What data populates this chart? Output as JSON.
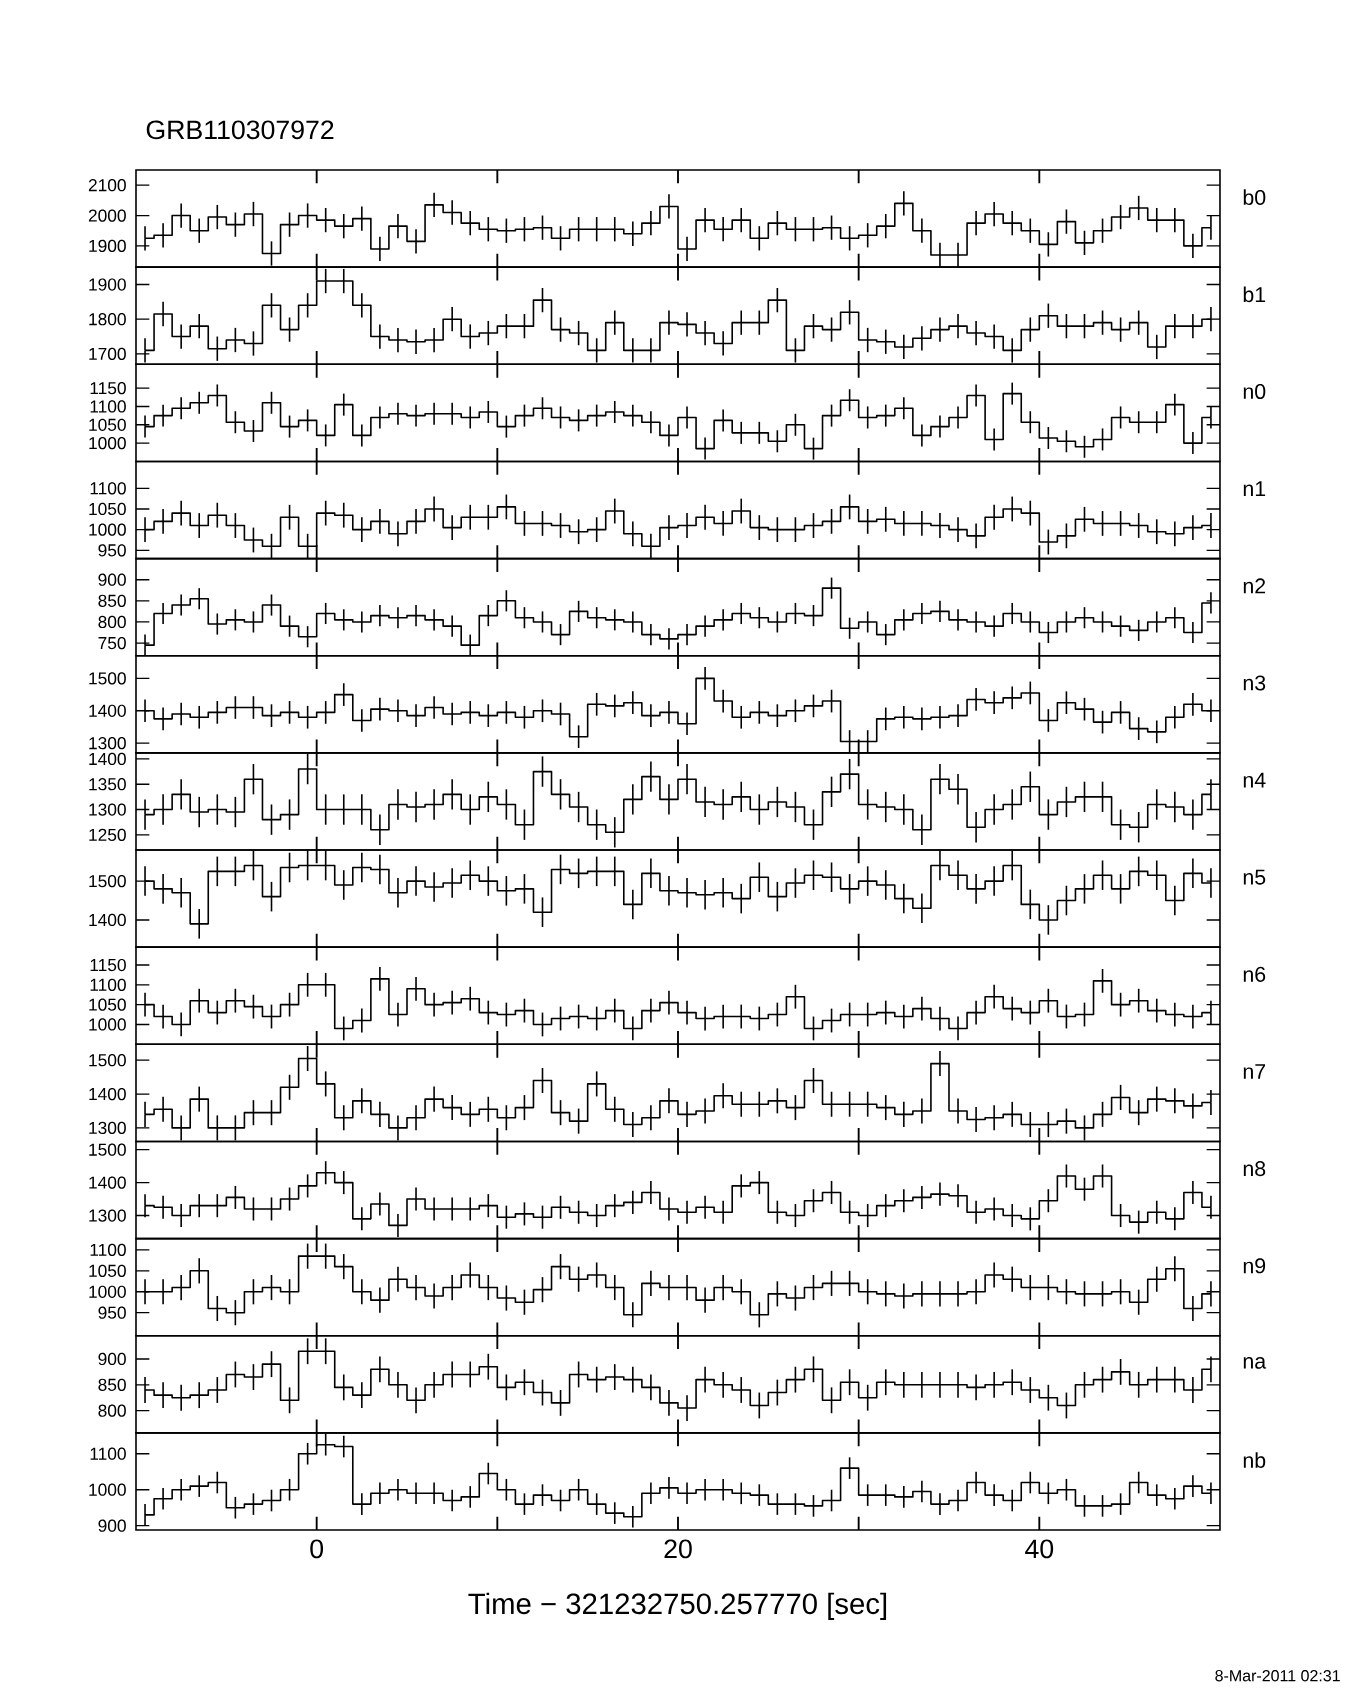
{
  "chart_data": [
    {
      "type": "step",
      "title": "GRB110307972",
      "annotations": [
        "b0"
      ],
      "color": "#000000",
      "tick_labels": "y",
      "xlim": [
        -10,
        50
      ],
      "xticks": [
        0,
        20,
        40
      ],
      "ylim": [
        1830,
        2150
      ],
      "yticks": [
        1900,
        2000,
        2100
      ],
      "x": [
        -9.5,
        -8.5,
        -7.5,
        -6.5,
        -5.5,
        -4.5,
        -3.5,
        -2.5,
        -1.5,
        -0.5,
        0.5,
        1.5,
        2.5,
        3.5,
        4.5,
        5.5,
        6.5,
        7.5,
        8.5,
        9.5,
        10.5,
        11.5,
        12.5,
        13.5,
        14.5,
        15.5,
        16.5,
        17.5,
        18.5,
        19.5,
        20.5,
        21.5,
        22.5,
        23.5,
        24.5,
        25.5,
        26.5,
        27.5,
        28.5,
        29.5,
        30.5,
        31.5,
        32.5,
        33.5,
        34.5,
        35.5,
        36.5,
        37.5,
        38.5,
        39.5,
        40.5,
        41.5,
        42.5,
        43.5,
        44.5,
        45.5,
        46.5,
        47.5,
        48.5,
        49.5
      ],
      "values": [
        1925,
        1935,
        2000,
        1950,
        1995,
        1970,
        2005,
        1875,
        1970,
        2000,
        1985,
        1965,
        1990,
        1890,
        1965,
        1915,
        2035,
        2010,
        1975,
        1955,
        1950,
        1955,
        1960,
        1925,
        1955,
        1955,
        1955,
        1940,
        1975,
        2030,
        1890,
        1985,
        1955,
        1985,
        1925,
        1975,
        1955,
        1955,
        1960,
        1925,
        1935,
        1965,
        2040,
        1950,
        1870,
        1870,
        1975,
        2005,
        1975,
        1950,
        1905,
        1980,
        1910,
        1950,
        1995,
        2025,
        1985,
        1985,
        1900,
        1960
      ],
      "errors": [
        40,
        40,
        40,
        40,
        40,
        40,
        40,
        40,
        40,
        40,
        40,
        40,
        40,
        40,
        40,
        40,
        40,
        40,
        40,
        40,
        40,
        40,
        40,
        40,
        40,
        40,
        40,
        40,
        40,
        40,
        40,
        40,
        40,
        40,
        40,
        40,
        40,
        40,
        40,
        40,
        40,
        40,
        40,
        40,
        40,
        40,
        40,
        40,
        40,
        40,
        40,
        40,
        40,
        40,
        40,
        40,
        40,
        40,
        40,
        40
      ]
    },
    {
      "type": "step",
      "annotations": [
        "b1"
      ],
      "color": "#000000",
      "tick_labels": "y",
      "xlim": [
        -10,
        50
      ],
      "xticks": [
        0,
        20,
        40
      ],
      "ylim": [
        1670,
        1950
      ],
      "yticks": [
        1700,
        1800,
        1900
      ],
      "x": [
        -9.5,
        -8.5,
        -7.5,
        -6.5,
        -5.5,
        -4.5,
        -3.5,
        -2.5,
        -1.5,
        -0.5,
        0.5,
        1.5,
        2.5,
        3.5,
        4.5,
        5.5,
        6.5,
        7.5,
        8.5,
        9.5,
        10.5,
        11.5,
        12.5,
        13.5,
        14.5,
        15.5,
        16.5,
        17.5,
        18.5,
        19.5,
        20.5,
        21.5,
        22.5,
        23.5,
        24.5,
        25.5,
        26.5,
        27.5,
        28.5,
        29.5,
        30.5,
        31.5,
        32.5,
        33.5,
        34.5,
        35.5,
        36.5,
        37.5,
        38.5,
        39.5,
        40.5,
        41.5,
        42.5,
        43.5,
        44.5,
        45.5,
        46.5,
        47.5,
        48.5,
        49.5
      ],
      "values": [
        1710,
        1815,
        1750,
        1780,
        1715,
        1740,
        1730,
        1840,
        1770,
        1840,
        1910,
        1910,
        1840,
        1750,
        1740,
        1735,
        1740,
        1800,
        1750,
        1760,
        1780,
        1780,
        1855,
        1770,
        1760,
        1710,
        1790,
        1710,
        1710,
        1790,
        1785,
        1760,
        1730,
        1790,
        1790,
        1855,
        1710,
        1780,
        1770,
        1820,
        1740,
        1735,
        1720,
        1745,
        1770,
        1780,
        1760,
        1750,
        1710,
        1770,
        1810,
        1780,
        1780,
        1790,
        1770,
        1790,
        1720,
        1780,
        1780,
        1800
      ],
      "errors": [
        35,
        35,
        35,
        35,
        35,
        35,
        35,
        35,
        35,
        35,
        35,
        35,
        35,
        35,
        35,
        35,
        35,
        35,
        35,
        35,
        35,
        35,
        35,
        35,
        35,
        35,
        35,
        35,
        35,
        35,
        35,
        35,
        35,
        35,
        35,
        35,
        35,
        35,
        35,
        35,
        35,
        35,
        35,
        35,
        35,
        35,
        35,
        35,
        35,
        35,
        35,
        35,
        35,
        35,
        35,
        35,
        35,
        35,
        35,
        35
      ]
    },
    {
      "type": "step",
      "annotations": [
        "n0"
      ],
      "color": "#000000",
      "tick_labels": "y",
      "xlim": [
        -10,
        50
      ],
      "xticks": [
        0,
        20,
        40
      ],
      "ylim": [
        950,
        1215
      ],
      "yticks": [
        1000,
        1050,
        1100,
        1150
      ],
      "x": [
        -9.5,
        -8.5,
        -7.5,
        -6.5,
        -5.5,
        -4.5,
        -3.5,
        -2.5,
        -1.5,
        -0.5,
        0.5,
        1.5,
        2.5,
        3.5,
        4.5,
        5.5,
        6.5,
        7.5,
        8.5,
        9.5,
        10.5,
        11.5,
        12.5,
        13.5,
        14.5,
        15.5,
        16.5,
        17.5,
        18.5,
        19.5,
        20.5,
        21.5,
        22.5,
        23.5,
        24.5,
        25.5,
        26.5,
        27.5,
        28.5,
        29.5,
        30.5,
        31.5,
        32.5,
        33.5,
        34.5,
        35.5,
        36.5,
        37.5,
        38.5,
        39.5,
        40.5,
        41.5,
        42.5,
        43.5,
        44.5,
        45.5,
        46.5,
        47.5,
        48.5,
        49.5
      ],
      "values": [
        1045,
        1075,
        1095,
        1110,
        1130,
        1057,
        1033,
        1110,
        1045,
        1062,
        1021,
        1105,
        1021,
        1070,
        1080,
        1075,
        1080,
        1080,
        1070,
        1085,
        1045,
        1075,
        1095,
        1070,
        1062,
        1075,
        1085,
        1075,
        1057,
        1021,
        1070,
        985,
        1062,
        1028,
        1028,
        1005,
        1050,
        985,
        1075,
        1117,
        1070,
        1075,
        1095,
        1021,
        1045,
        1070,
        1130,
        1010,
        1135,
        1057,
        1014,
        1005,
        990,
        1010,
        1070,
        1057,
        1057,
        1105,
        1000,
        1070
      ],
      "errors": [
        30,
        30,
        30,
        30,
        30,
        30,
        30,
        30,
        30,
        30,
        30,
        30,
        30,
        30,
        30,
        30,
        30,
        30,
        30,
        30,
        30,
        30,
        30,
        30,
        30,
        30,
        30,
        30,
        30,
        30,
        30,
        30,
        30,
        30,
        30,
        30,
        30,
        30,
        30,
        30,
        30,
        30,
        30,
        30,
        30,
        30,
        30,
        30,
        30,
        30,
        30,
        30,
        30,
        30,
        30,
        30,
        30,
        30,
        30,
        30
      ]
    },
    {
      "type": "step",
      "annotations": [
        "n1"
      ],
      "color": "#000000",
      "tick_labels": "y",
      "xlim": [
        -10,
        50
      ],
      "xticks": [
        0,
        20,
        40
      ],
      "ylim": [
        930,
        1165
      ],
      "yticks": [
        950,
        1000,
        1050,
        1100
      ],
      "x": [
        -9.5,
        -8.5,
        -7.5,
        -6.5,
        -5.5,
        -4.5,
        -3.5,
        -2.5,
        -1.5,
        -0.5,
        0.5,
        1.5,
        2.5,
        3.5,
        4.5,
        5.5,
        6.5,
        7.5,
        8.5,
        9.5,
        10.5,
        11.5,
        12.5,
        13.5,
        14.5,
        15.5,
        16.5,
        17.5,
        18.5,
        19.5,
        20.5,
        21.5,
        22.5,
        23.5,
        24.5,
        25.5,
        26.5,
        27.5,
        28.5,
        29.5,
        30.5,
        31.5,
        32.5,
        33.5,
        34.5,
        35.5,
        36.5,
        37.5,
        38.5,
        39.5,
        40.5,
        41.5,
        42.5,
        43.5,
        44.5,
        45.5,
        46.5,
        47.5,
        48.5,
        49.5
      ],
      "values": [
        1000,
        1020,
        1040,
        1010,
        1035,
        1010,
        975,
        960,
        1030,
        960,
        1040,
        1035,
        1000,
        1020,
        990,
        1020,
        1050,
        1005,
        1030,
        1030,
        1055,
        1015,
        1015,
        1010,
        995,
        1000,
        1045,
        990,
        960,
        1005,
        1010,
        1030,
        1015,
        1045,
        1005,
        1000,
        1000,
        1010,
        1020,
        1055,
        1020,
        1025,
        1015,
        1015,
        1010,
        1000,
        985,
        1030,
        1050,
        1040,
        970,
        985,
        1025,
        1015,
        1015,
        1010,
        995,
        990,
        1005,
        1010
      ],
      "errors": [
        30,
        30,
        30,
        30,
        30,
        30,
        30,
        30,
        30,
        30,
        30,
        30,
        30,
        30,
        30,
        30,
        30,
        30,
        30,
        30,
        30,
        30,
        30,
        30,
        30,
        30,
        30,
        30,
        30,
        30,
        30,
        30,
        30,
        30,
        30,
        30,
        30,
        30,
        30,
        30,
        30,
        30,
        30,
        30,
        30,
        30,
        30,
        30,
        30,
        30,
        30,
        30,
        30,
        30,
        30,
        30,
        30,
        30,
        30,
        30
      ]
    },
    {
      "type": "step",
      "annotations": [
        "n2"
      ],
      "color": "#000000",
      "tick_labels": "y",
      "xlim": [
        -10,
        50
      ],
      "xticks": [
        0,
        20,
        40
      ],
      "ylim": [
        720,
        950
      ],
      "yticks": [
        750,
        800,
        850,
        900
      ],
      "x": [
        -9.5,
        -8.5,
        -7.5,
        -6.5,
        -5.5,
        -4.5,
        -3.5,
        -2.5,
        -1.5,
        -0.5,
        0.5,
        1.5,
        2.5,
        3.5,
        4.5,
        5.5,
        6.5,
        7.5,
        8.5,
        9.5,
        10.5,
        11.5,
        12.5,
        13.5,
        14.5,
        15.5,
        16.5,
        17.5,
        18.5,
        19.5,
        20.5,
        21.5,
        22.5,
        23.5,
        24.5,
        25.5,
        26.5,
        27.5,
        28.5,
        29.5,
        30.5,
        31.5,
        32.5,
        33.5,
        34.5,
        35.5,
        36.5,
        37.5,
        38.5,
        39.5,
        40.5,
        41.5,
        42.5,
        43.5,
        44.5,
        45.5,
        46.5,
        47.5,
        48.5,
        49.5
      ],
      "values": [
        745,
        820,
        840,
        855,
        795,
        805,
        800,
        840,
        790,
        765,
        820,
        805,
        800,
        815,
        810,
        815,
        805,
        790,
        745,
        815,
        850,
        810,
        800,
        770,
        825,
        810,
        805,
        800,
        770,
        760,
        770,
        790,
        805,
        820,
        810,
        800,
        820,
        815,
        880,
        785,
        800,
        770,
        805,
        820,
        825,
        805,
        800,
        790,
        820,
        800,
        775,
        800,
        810,
        800,
        790,
        780,
        800,
        810,
        775,
        845
      ],
      "errors": [
        25,
        25,
        25,
        25,
        25,
        25,
        25,
        25,
        25,
        25,
        25,
        25,
        25,
        25,
        25,
        25,
        25,
        25,
        25,
        25,
        25,
        25,
        25,
        25,
        25,
        25,
        25,
        25,
        25,
        25,
        25,
        25,
        25,
        25,
        25,
        25,
        25,
        25,
        25,
        25,
        25,
        25,
        25,
        25,
        25,
        25,
        25,
        25,
        25,
        25,
        25,
        25,
        25,
        25,
        25,
        25,
        25,
        25,
        25,
        25
      ]
    },
    {
      "type": "step",
      "annotations": [
        "n3"
      ],
      "color": "#000000",
      "tick_labels": "y",
      "xlim": [
        -10,
        50
      ],
      "xticks": [
        0,
        20,
        40
      ],
      "ylim": [
        1270,
        1570
      ],
      "yticks": [
        1300,
        1400,
        1500
      ],
      "x": [
        -9.5,
        -8.5,
        -7.5,
        -6.5,
        -5.5,
        -4.5,
        -3.5,
        -2.5,
        -1.5,
        -0.5,
        0.5,
        1.5,
        2.5,
        3.5,
        4.5,
        5.5,
        6.5,
        7.5,
        8.5,
        9.5,
        10.5,
        11.5,
        12.5,
        13.5,
        14.5,
        15.5,
        16.5,
        17.5,
        18.5,
        19.5,
        20.5,
        21.5,
        22.5,
        23.5,
        24.5,
        25.5,
        26.5,
        27.5,
        28.5,
        29.5,
        30.5,
        31.5,
        32.5,
        33.5,
        34.5,
        35.5,
        36.5,
        37.5,
        38.5,
        39.5,
        40.5,
        41.5,
        42.5,
        43.5,
        44.5,
        45.5,
        46.5,
        47.5,
        48.5,
        49.5
      ],
      "values": [
        1400,
        1375,
        1390,
        1380,
        1395,
        1410,
        1410,
        1385,
        1395,
        1380,
        1395,
        1450,
        1370,
        1405,
        1400,
        1385,
        1410,
        1390,
        1395,
        1385,
        1395,
        1380,
        1400,
        1390,
        1320,
        1420,
        1415,
        1425,
        1385,
        1395,
        1360,
        1500,
        1430,
        1380,
        1395,
        1385,
        1400,
        1415,
        1430,
        1305,
        1305,
        1375,
        1380,
        1375,
        1380,
        1385,
        1435,
        1425,
        1440,
        1455,
        1370,
        1425,
        1405,
        1365,
        1395,
        1345,
        1335,
        1380,
        1420,
        1400
      ],
      "errors": [
        35,
        35,
        35,
        35,
        35,
        35,
        35,
        35,
        35,
        35,
        35,
        35,
        35,
        35,
        35,
        35,
        35,
        35,
        35,
        35,
        35,
        35,
        35,
        35,
        35,
        35,
        35,
        35,
        35,
        35,
        35,
        35,
        35,
        35,
        35,
        35,
        35,
        35,
        35,
        35,
        35,
        35,
        35,
        35,
        35,
        35,
        35,
        35,
        35,
        35,
        35,
        35,
        35,
        35,
        35,
        35,
        35,
        35,
        35,
        35
      ]
    },
    {
      "type": "step",
      "annotations": [
        "n4"
      ],
      "color": "#000000",
      "tick_labels": "y",
      "xlim": [
        -10,
        50
      ],
      "xticks": [
        0,
        20,
        40
      ],
      "ylim": [
        1220,
        1412
      ],
      "yticks": [
        1250,
        1300,
        1350,
        1400
      ],
      "x": [
        -9.5,
        -8.5,
        -7.5,
        -6.5,
        -5.5,
        -4.5,
        -3.5,
        -2.5,
        -1.5,
        -0.5,
        0.5,
        1.5,
        2.5,
        3.5,
        4.5,
        5.5,
        6.5,
        7.5,
        8.5,
        9.5,
        10.5,
        11.5,
        12.5,
        13.5,
        14.5,
        15.5,
        16.5,
        17.5,
        18.5,
        19.5,
        20.5,
        21.5,
        22.5,
        23.5,
        24.5,
        25.5,
        26.5,
        27.5,
        28.5,
        29.5,
        30.5,
        31.5,
        32.5,
        33.5,
        34.5,
        35.5,
        36.5,
        37.5,
        38.5,
        39.5,
        40.5,
        41.5,
        42.5,
        43.5,
        44.5,
        45.5,
        46.5,
        47.5,
        48.5,
        49.5
      ],
      "values": [
        1290,
        1300,
        1330,
        1295,
        1300,
        1295,
        1360,
        1280,
        1290,
        1380,
        1300,
        1300,
        1300,
        1260,
        1310,
        1305,
        1310,
        1330,
        1300,
        1325,
        1310,
        1270,
        1375,
        1330,
        1305,
        1270,
        1255,
        1320,
        1365,
        1320,
        1360,
        1315,
        1310,
        1325,
        1300,
        1315,
        1305,
        1270,
        1335,
        1370,
        1310,
        1305,
        1300,
        1260,
        1360,
        1340,
        1265,
        1300,
        1310,
        1345,
        1290,
        1315,
        1325,
        1325,
        1270,
        1265,
        1310,
        1305,
        1290,
        1330
      ],
      "errors": [
        30,
        30,
        30,
        30,
        30,
        30,
        30,
        30,
        30,
        30,
        30,
        30,
        30,
        30,
        30,
        30,
        30,
        30,
        30,
        30,
        30,
        30,
        30,
        30,
        30,
        30,
        30,
        30,
        30,
        30,
        30,
        30,
        30,
        30,
        30,
        30,
        30,
        30,
        30,
        30,
        30,
        30,
        30,
        30,
        30,
        30,
        30,
        30,
        30,
        30,
        30,
        30,
        30,
        30,
        30,
        30,
        30,
        30,
        30,
        30
      ]
    },
    {
      "type": "step",
      "annotations": [
        "n5"
      ],
      "color": "#000000",
      "tick_labels": "y",
      "xlim": [
        -10,
        50
      ],
      "xticks": [
        0,
        20,
        40
      ],
      "ylim": [
        1330,
        1580
      ],
      "yticks": [
        1400,
        1500
      ],
      "x": [
        -9.5,
        -8.5,
        -7.5,
        -6.5,
        -5.5,
        -4.5,
        -3.5,
        -2.5,
        -1.5,
        -0.5,
        0.5,
        1.5,
        2.5,
        3.5,
        4.5,
        5.5,
        6.5,
        7.5,
        8.5,
        9.5,
        10.5,
        11.5,
        12.5,
        13.5,
        14.5,
        15.5,
        16.5,
        17.5,
        18.5,
        19.5,
        20.5,
        21.5,
        22.5,
        23.5,
        24.5,
        25.5,
        26.5,
        27.5,
        28.5,
        29.5,
        30.5,
        31.5,
        32.5,
        33.5,
        34.5,
        35.5,
        36.5,
        37.5,
        38.5,
        39.5,
        40.5,
        41.5,
        42.5,
        43.5,
        44.5,
        45.5,
        46.5,
        47.5,
        48.5,
        49.5
      ],
      "values": [
        1500,
        1480,
        1470,
        1390,
        1525,
        1525,
        1540,
        1460,
        1535,
        1540,
        1540,
        1490,
        1535,
        1530,
        1470,
        1500,
        1485,
        1495,
        1515,
        1500,
        1475,
        1480,
        1420,
        1530,
        1520,
        1525,
        1525,
        1440,
        1520,
        1475,
        1470,
        1465,
        1470,
        1455,
        1510,
        1460,
        1495,
        1515,
        1510,
        1480,
        1500,
        1490,
        1455,
        1430,
        1540,
        1515,
        1480,
        1500,
        1540,
        1440,
        1400,
        1450,
        1480,
        1515,
        1480,
        1525,
        1515,
        1450,
        1520,
        1495
      ],
      "errors": [
        38,
        38,
        38,
        38,
        38,
        38,
        38,
        38,
        38,
        38,
        38,
        38,
        38,
        38,
        38,
        38,
        38,
        38,
        38,
        38,
        38,
        38,
        38,
        38,
        38,
        38,
        38,
        38,
        38,
        38,
        38,
        38,
        38,
        38,
        38,
        38,
        38,
        38,
        38,
        38,
        38,
        38,
        38,
        38,
        38,
        38,
        38,
        38,
        38,
        38,
        38,
        38,
        38,
        38,
        38,
        38,
        38,
        38,
        38,
        38
      ]
    },
    {
      "type": "step",
      "annotations": [
        "n6"
      ],
      "color": "#000000",
      "tick_labels": "y",
      "xlim": [
        -10,
        50
      ],
      "xticks": [
        0,
        20,
        40
      ],
      "ylim": [
        950,
        1195
      ],
      "yticks": [
        1000,
        1050,
        1100,
        1150
      ],
      "x": [
        -9.5,
        -8.5,
        -7.5,
        -6.5,
        -5.5,
        -4.5,
        -3.5,
        -2.5,
        -1.5,
        -0.5,
        0.5,
        1.5,
        2.5,
        3.5,
        4.5,
        5.5,
        6.5,
        7.5,
        8.5,
        9.5,
        10.5,
        11.5,
        12.5,
        13.5,
        14.5,
        15.5,
        16.5,
        17.5,
        18.5,
        19.5,
        20.5,
        21.5,
        22.5,
        23.5,
        24.5,
        25.5,
        26.5,
        27.5,
        28.5,
        29.5,
        30.5,
        31.5,
        32.5,
        33.5,
        34.5,
        35.5,
        36.5,
        37.5,
        38.5,
        39.5,
        40.5,
        41.5,
        42.5,
        43.5,
        44.5,
        45.5,
        46.5,
        47.5,
        48.5,
        49.5
      ],
      "values": [
        1050,
        1020,
        1000,
        1060,
        1030,
        1060,
        1045,
        1020,
        1050,
        1100,
        1100,
        990,
        1010,
        1115,
        1025,
        1090,
        1050,
        1055,
        1065,
        1030,
        1025,
        1035,
        1000,
        1015,
        1020,
        1015,
        1035,
        990,
        1035,
        1055,
        1030,
        1015,
        1020,
        1020,
        1015,
        1025,
        1070,
        990,
        1010,
        1025,
        1025,
        1030,
        1020,
        1040,
        1015,
        990,
        1030,
        1070,
        1040,
        1030,
        1060,
        1020,
        1025,
        1110,
        1050,
        1060,
        1035,
        1025,
        1020,
        1030
      ],
      "errors": [
        30,
        30,
        30,
        30,
        30,
        30,
        30,
        30,
        30,
        30,
        30,
        30,
        30,
        30,
        30,
        30,
        30,
        30,
        30,
        30,
        30,
        30,
        30,
        30,
        30,
        30,
        30,
        30,
        30,
        30,
        30,
        30,
        30,
        30,
        30,
        30,
        30,
        30,
        30,
        30,
        30,
        30,
        30,
        30,
        30,
        30,
        30,
        30,
        30,
        30,
        30,
        30,
        30,
        30,
        30,
        30,
        30,
        30,
        30,
        30
      ]
    },
    {
      "type": "step",
      "annotations": [
        "n7"
      ],
      "color": "#000000",
      "tick_labels": "y",
      "xlim": [
        -10,
        50
      ],
      "xticks": [
        0,
        20,
        40
      ],
      "ylim": [
        1260,
        1547
      ],
      "yticks": [
        1300,
        1400,
        1500
      ],
      "x": [
        -9.5,
        -8.5,
        -7.5,
        -6.5,
        -5.5,
        -4.5,
        -3.5,
        -2.5,
        -1.5,
        -0.5,
        0.5,
        1.5,
        2.5,
        3.5,
        4.5,
        5.5,
        6.5,
        7.5,
        8.5,
        9.5,
        10.5,
        11.5,
        12.5,
        13.5,
        14.5,
        15.5,
        16.5,
        17.5,
        18.5,
        19.5,
        20.5,
        21.5,
        22.5,
        23.5,
        24.5,
        25.5,
        26.5,
        27.5,
        28.5,
        29.5,
        30.5,
        31.5,
        32.5,
        33.5,
        34.5,
        35.5,
        36.5,
        37.5,
        38.5,
        39.5,
        40.5,
        41.5,
        42.5,
        43.5,
        44.5,
        45.5,
        46.5,
        47.5,
        48.5,
        49.5
      ],
      "values": [
        1340,
        1355,
        1300,
        1385,
        1300,
        1300,
        1345,
        1345,
        1420,
        1505,
        1430,
        1330,
        1380,
        1340,
        1300,
        1330,
        1385,
        1360,
        1340,
        1355,
        1330,
        1360,
        1440,
        1345,
        1320,
        1430,
        1355,
        1310,
        1330,
        1380,
        1340,
        1350,
        1395,
        1370,
        1370,
        1380,
        1360,
        1440,
        1370,
        1370,
        1370,
        1360,
        1340,
        1350,
        1490,
        1350,
        1325,
        1330,
        1340,
        1310,
        1310,
        1320,
        1300,
        1340,
        1390,
        1345,
        1385,
        1380,
        1365,
        1375
      ],
      "errors": [
        37,
        37,
        37,
        37,
        37,
        37,
        37,
        37,
        37,
        37,
        37,
        37,
        37,
        37,
        37,
        37,
        37,
        37,
        37,
        37,
        37,
        37,
        37,
        37,
        37,
        37,
        37,
        37,
        37,
        37,
        37,
        37,
        37,
        37,
        37,
        37,
        37,
        37,
        37,
        37,
        37,
        37,
        37,
        37,
        37,
        37,
        37,
        37,
        37,
        37,
        37,
        37,
        37,
        37,
        37,
        37,
        37,
        37,
        37,
        37
      ]
    },
    {
      "type": "step",
      "annotations": [
        "n8"
      ],
      "color": "#000000",
      "tick_labels": "y",
      "xlim": [
        -10,
        50
      ],
      "xticks": [
        0,
        20,
        40
      ],
      "ylim": [
        1230,
        1525
      ],
      "yticks": [
        1300,
        1400,
        1500
      ],
      "x": [
        -9.5,
        -8.5,
        -7.5,
        -6.5,
        -5.5,
        -4.5,
        -3.5,
        -2.5,
        -1.5,
        -0.5,
        0.5,
        1.5,
        2.5,
        3.5,
        4.5,
        5.5,
        6.5,
        7.5,
        8.5,
        9.5,
        10.5,
        11.5,
        12.5,
        13.5,
        14.5,
        15.5,
        16.5,
        17.5,
        18.5,
        19.5,
        20.5,
        21.5,
        22.5,
        23.5,
        24.5,
        25.5,
        26.5,
        27.5,
        28.5,
        29.5,
        30.5,
        31.5,
        32.5,
        33.5,
        34.5,
        35.5,
        36.5,
        37.5,
        38.5,
        39.5,
        40.5,
        41.5,
        42.5,
        43.5,
        44.5,
        45.5,
        46.5,
        47.5,
        48.5,
        49.5
      ],
      "values": [
        1330,
        1325,
        1300,
        1330,
        1330,
        1355,
        1320,
        1320,
        1350,
        1390,
        1430,
        1400,
        1290,
        1335,
        1270,
        1350,
        1320,
        1320,
        1320,
        1330,
        1295,
        1305,
        1295,
        1325,
        1310,
        1300,
        1330,
        1340,
        1370,
        1320,
        1310,
        1325,
        1310,
        1390,
        1400,
        1310,
        1300,
        1345,
        1370,
        1310,
        1300,
        1330,
        1345,
        1355,
        1365,
        1360,
        1310,
        1320,
        1300,
        1290,
        1345,
        1420,
        1380,
        1420,
        1300,
        1280,
        1310,
        1290,
        1370,
        1325
      ],
      "errors": [
        35,
        35,
        35,
        35,
        35,
        35,
        35,
        35,
        35,
        35,
        35,
        35,
        35,
        35,
        35,
        35,
        35,
        35,
        35,
        35,
        35,
        35,
        35,
        35,
        35,
        35,
        35,
        35,
        35,
        35,
        35,
        35,
        35,
        35,
        35,
        35,
        35,
        35,
        35,
        35,
        35,
        35,
        35,
        35,
        35,
        35,
        35,
        35,
        35,
        35,
        35,
        35,
        35,
        35,
        35,
        35,
        35,
        35,
        35,
        35
      ]
    },
    {
      "type": "step",
      "annotations": [
        "n9"
      ],
      "color": "#000000",
      "tick_labels": "y",
      "xlim": [
        -10,
        50
      ],
      "xticks": [
        0,
        20,
        40
      ],
      "ylim": [
        895,
        1127
      ],
      "yticks": [
        950,
        1000,
        1050,
        1100
      ],
      "x": [
        -9.5,
        -8.5,
        -7.5,
        -6.5,
        -5.5,
        -4.5,
        -3.5,
        -2.5,
        -1.5,
        -0.5,
        0.5,
        1.5,
        2.5,
        3.5,
        4.5,
        5.5,
        6.5,
        7.5,
        8.5,
        9.5,
        10.5,
        11.5,
        12.5,
        13.5,
        14.5,
        15.5,
        16.5,
        17.5,
        18.5,
        19.5,
        20.5,
        21.5,
        22.5,
        23.5,
        24.5,
        25.5,
        26.5,
        27.5,
        28.5,
        29.5,
        30.5,
        31.5,
        32.5,
        33.5,
        34.5,
        35.5,
        36.5,
        37.5,
        38.5,
        39.5,
        40.5,
        41.5,
        42.5,
        43.5,
        44.5,
        45.5,
        46.5,
        47.5,
        48.5,
        49.5
      ],
      "values": [
        1000,
        1000,
        1010,
        1050,
        960,
        950,
        1000,
        1010,
        1000,
        1085,
        1085,
        1060,
        1000,
        980,
        1030,
        1010,
        990,
        1010,
        1040,
        1010,
        985,
        975,
        1005,
        1060,
        1030,
        1040,
        1010,
        945,
        1020,
        1010,
        1010,
        980,
        1010,
        1000,
        945,
        995,
        985,
        1010,
        1020,
        1020,
        1000,
        995,
        990,
        995,
        995,
        995,
        1000,
        1040,
        1030,
        1010,
        1010,
        1000,
        995,
        995,
        1000,
        975,
        1030,
        1055,
        960,
        995
      ],
      "errors": [
        30,
        30,
        30,
        30,
        30,
        30,
        30,
        30,
        30,
        30,
        30,
        30,
        30,
        30,
        30,
        30,
        30,
        30,
        30,
        30,
        30,
        30,
        30,
        30,
        30,
        30,
        30,
        30,
        30,
        30,
        30,
        30,
        30,
        30,
        30,
        30,
        30,
        30,
        30,
        30,
        30,
        30,
        30,
        30,
        30,
        30,
        30,
        30,
        30,
        30,
        30,
        30,
        30,
        30,
        30,
        30,
        30,
        30,
        30,
        30
      ]
    },
    {
      "type": "step",
      "annotations": [
        "na"
      ],
      "color": "#000000",
      "tick_labels": "y",
      "xlim": [
        -10,
        50
      ],
      "xticks": [
        0,
        20,
        40
      ],
      "ylim": [
        757,
        945
      ],
      "yticks": [
        800,
        850,
        900
      ],
      "x": [
        -9.5,
        -8.5,
        -7.5,
        -6.5,
        -5.5,
        -4.5,
        -3.5,
        -2.5,
        -1.5,
        -0.5,
        0.5,
        1.5,
        2.5,
        3.5,
        4.5,
        5.5,
        6.5,
        7.5,
        8.5,
        9.5,
        10.5,
        11.5,
        12.5,
        13.5,
        14.5,
        15.5,
        16.5,
        17.5,
        18.5,
        19.5,
        20.5,
        21.5,
        22.5,
        23.5,
        24.5,
        25.5,
        26.5,
        27.5,
        28.5,
        29.5,
        30.5,
        31.5,
        32.5,
        33.5,
        34.5,
        35.5,
        36.5,
        37.5,
        38.5,
        39.5,
        40.5,
        41.5,
        42.5,
        43.5,
        44.5,
        45.5,
        46.5,
        47.5,
        48.5,
        49.5
      ],
      "values": [
        840,
        830,
        825,
        830,
        840,
        870,
        865,
        890,
        820,
        915,
        915,
        845,
        830,
        880,
        850,
        820,
        850,
        870,
        870,
        885,
        845,
        855,
        835,
        815,
        870,
        860,
        865,
        860,
        845,
        815,
        805,
        860,
        850,
        840,
        810,
        835,
        860,
        880,
        820,
        855,
        825,
        855,
        850,
        850,
        850,
        850,
        845,
        850,
        855,
        840,
        825,
        810,
        850,
        860,
        875,
        850,
        860,
        860,
        840,
        880
      ],
      "errors": [
        25,
        25,
        25,
        25,
        25,
        25,
        25,
        25,
        25,
        25,
        25,
        25,
        25,
        25,
        25,
        25,
        25,
        25,
        25,
        25,
        25,
        25,
        25,
        25,
        25,
        25,
        25,
        25,
        25,
        25,
        25,
        25,
        25,
        25,
        25,
        25,
        25,
        25,
        25,
        25,
        25,
        25,
        25,
        25,
        25,
        25,
        25,
        25,
        25,
        25,
        25,
        25,
        25,
        25,
        25,
        25,
        25,
        25,
        25,
        25
      ]
    },
    {
      "type": "step",
      "annotations": [
        "nb",
        "8-Mar-2011 02:31"
      ],
      "xlabel": "Time − 321232750.257770 [sec]",
      "color": "#000000",
      "xlim": [
        -10,
        50
      ],
      "xticks": [
        0,
        20,
        40
      ],
      "ylim": [
        888,
        1158
      ],
      "yticks": [
        900,
        1000,
        1100
      ],
      "x": [
        -9.5,
        -8.5,
        -7.5,
        -6.5,
        -5.5,
        -4.5,
        -3.5,
        -2.5,
        -1.5,
        -0.5,
        0.5,
        1.5,
        2.5,
        3.5,
        4.5,
        5.5,
        6.5,
        7.5,
        8.5,
        9.5,
        10.5,
        11.5,
        12.5,
        13.5,
        14.5,
        15.5,
        16.5,
        17.5,
        18.5,
        19.5,
        20.5,
        21.5,
        22.5,
        23.5,
        24.5,
        25.5,
        26.5,
        27.5,
        28.5,
        29.5,
        30.5,
        31.5,
        32.5,
        33.5,
        34.5,
        35.5,
        36.5,
        37.5,
        38.5,
        39.5,
        40.5,
        41.5,
        42.5,
        43.5,
        44.5,
        45.5,
        46.5,
        47.5,
        48.5,
        49.5
      ],
      "values": [
        930,
        975,
        1000,
        1010,
        1020,
        950,
        960,
        970,
        1000,
        1100,
        1125,
        1120,
        960,
        990,
        1000,
        990,
        990,
        970,
        980,
        1045,
        1000,
        960,
        985,
        970,
        1000,
        960,
        935,
        925,
        990,
        1005,
        990,
        1000,
        1000,
        990,
        985,
        960,
        960,
        955,
        970,
        1060,
        985,
        985,
        980,
        995,
        960,
        970,
        1020,
        985,
        970,
        1020,
        990,
        1000,
        955,
        955,
        960,
        1020,
        985,
        975,
        1010,
        990
      ],
      "errors": [
        30,
        30,
        30,
        30,
        30,
        30,
        30,
        30,
        30,
        30,
        30,
        30,
        30,
        30,
        30,
        30,
        30,
        30,
        30,
        30,
        30,
        30,
        30,
        30,
        30,
        30,
        30,
        30,
        30,
        30,
        30,
        30,
        30,
        30,
        30,
        30,
        30,
        30,
        30,
        30,
        30,
        30,
        30,
        30,
        30,
        30,
        30,
        30,
        30,
        30,
        30,
        30,
        30,
        30,
        30,
        30,
        30,
        30,
        30,
        30
      ]
    }
  ]
}
